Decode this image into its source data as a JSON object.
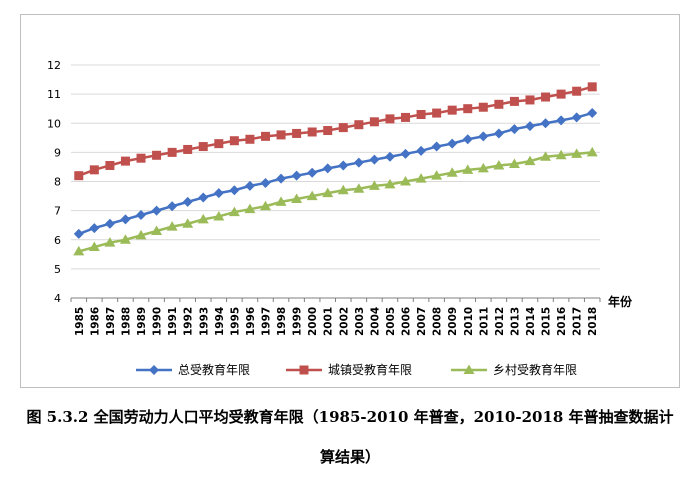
{
  "chart_data": {
    "type": "line",
    "title": "",
    "xlabel": "年份",
    "ylabel": "",
    "ylim": [
      4,
      12
    ],
    "yticks": [
      4,
      5,
      6,
      7,
      8,
      9,
      10,
      11,
      12
    ],
    "grid": true,
    "legend": "bottom",
    "x": [
      "1985",
      "1986",
      "1987",
      "1988",
      "1989",
      "1990",
      "1991",
      "1992",
      "1993",
      "1994",
      "1995",
      "1996",
      "1997",
      "1998",
      "1999",
      "2000",
      "2001",
      "2002",
      "2003",
      "2004",
      "2005",
      "2006",
      "2007",
      "2008",
      "2009",
      "2010",
      "2011",
      "2012",
      "2013",
      "2014",
      "2015",
      "2016",
      "2017",
      "2018"
    ],
    "series": [
      {
        "name": "总受教育年限",
        "color": "#4472c4",
        "marker": "diamond",
        "values": [
          6.2,
          6.4,
          6.55,
          6.7,
          6.85,
          7.0,
          7.15,
          7.3,
          7.45,
          7.6,
          7.7,
          7.85,
          7.95,
          8.1,
          8.2,
          8.3,
          8.45,
          8.55,
          8.65,
          8.75,
          8.85,
          8.95,
          9.05,
          9.2,
          9.3,
          9.45,
          9.55,
          9.65,
          9.8,
          9.9,
          10.0,
          10.1,
          10.2,
          10.35
        ]
      },
      {
        "name": "城镇受教育年限",
        "color": "#c0504d",
        "marker": "square",
        "values": [
          8.2,
          8.4,
          8.55,
          8.7,
          8.8,
          8.9,
          9.0,
          9.1,
          9.2,
          9.3,
          9.4,
          9.45,
          9.55,
          9.6,
          9.65,
          9.7,
          9.75,
          9.85,
          9.95,
          10.05,
          10.15,
          10.2,
          10.3,
          10.35,
          10.45,
          10.5,
          10.55,
          10.65,
          10.75,
          10.8,
          10.9,
          11.0,
          11.1,
          11.25
        ]
      },
      {
        "name": "乡村受教育年限",
        "color": "#9bbb59",
        "marker": "triangle",
        "values": [
          5.6,
          5.75,
          5.9,
          6.0,
          6.15,
          6.3,
          6.45,
          6.55,
          6.7,
          6.8,
          6.95,
          7.05,
          7.15,
          7.3,
          7.4,
          7.5,
          7.6,
          7.7,
          7.75,
          7.85,
          7.9,
          8.0,
          8.1,
          8.2,
          8.3,
          8.4,
          8.45,
          8.55,
          8.6,
          8.7,
          8.85,
          8.9,
          8.95,
          9.0
        ]
      }
    ]
  },
  "caption": {
    "line1": "图 5.3.2 全国劳动力人口平均受教育年限（1985-2010 年普查，2010-2018 年普抽查数据计",
    "line2": "算结果）"
  }
}
